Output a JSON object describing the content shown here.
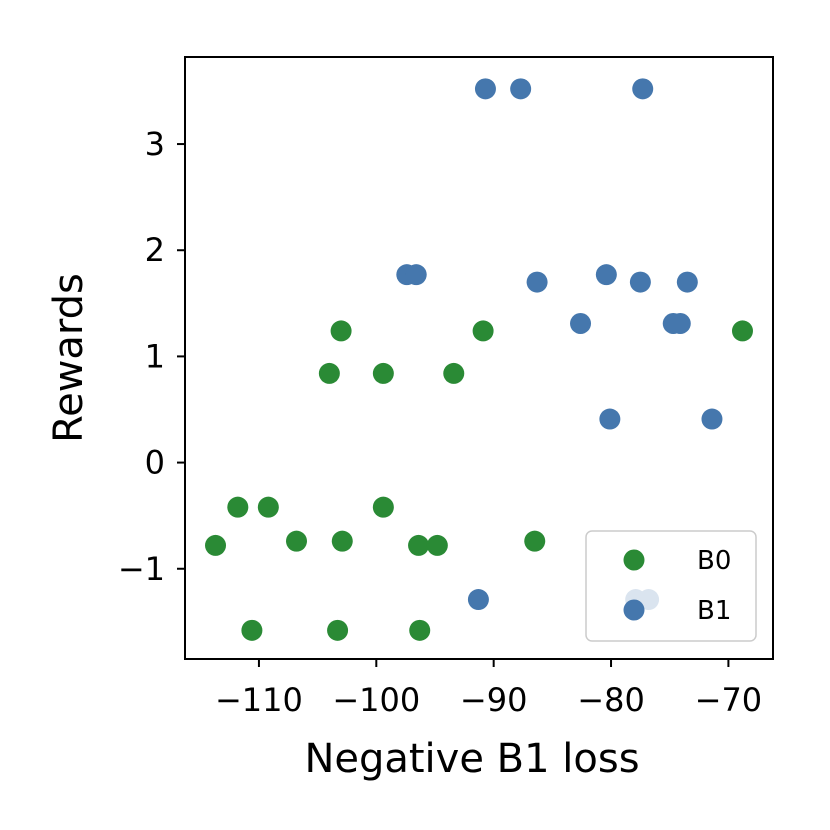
{
  "chart_data": {
    "type": "scatter",
    "title": "",
    "xlabel": "Negative B1 loss",
    "ylabel": "Rewards",
    "xlim": [
      -116.3,
      -66.2
    ],
    "ylim": [
      -1.85,
      3.82
    ],
    "xticks": [
      -110,
      -100,
      -90,
      -80,
      -70
    ],
    "yticks": [
      -1,
      0,
      1,
      2,
      3
    ],
    "xtick_labels": [
      "−110",
      "−100",
      "−90",
      "−80",
      "−70"
    ],
    "ytick_labels": [
      "−1",
      "0",
      "1",
      "2",
      "3"
    ],
    "grid": false,
    "legend_position": "lower-right",
    "series": [
      {
        "name": "B0",
        "color": "#2a8a35",
        "points": [
          [
            -113.7,
            -0.78
          ],
          [
            -111.8,
            -0.42
          ],
          [
            -109.2,
            -0.42
          ],
          [
            -110.6,
            -1.58
          ],
          [
            -106.8,
            -0.74
          ],
          [
            -104.0,
            0.84
          ],
          [
            -103.0,
            1.24
          ],
          [
            -102.9,
            -0.74
          ],
          [
            -103.3,
            -1.58
          ],
          [
            -99.4,
            0.84
          ],
          [
            -99.4,
            -0.42
          ],
          [
            -96.4,
            -0.78
          ],
          [
            -96.3,
            -1.58
          ],
          [
            -94.8,
            -0.78
          ],
          [
            -93.4,
            0.84
          ],
          [
            -90.9,
            1.24
          ],
          [
            -86.5,
            -0.74
          ],
          [
            -68.8,
            1.24
          ]
        ]
      },
      {
        "name": "B1",
        "color": "#4577ad",
        "points": [
          [
            -90.7,
            3.52
          ],
          [
            -87.7,
            3.52
          ],
          [
            -77.3,
            3.52
          ],
          [
            -97.4,
            1.77
          ],
          [
            -96.6,
            1.77
          ],
          [
            -86.3,
            1.7
          ],
          [
            -80.4,
            1.77
          ],
          [
            -77.5,
            1.7
          ],
          [
            -73.5,
            1.7
          ],
          [
            -82.6,
            1.31
          ],
          [
            -74.7,
            1.31
          ],
          [
            -74.1,
            1.31
          ],
          [
            -80.1,
            0.41
          ],
          [
            -71.4,
            0.41
          ],
          [
            -91.3,
            -1.29
          ],
          [
            -77.9,
            -1.29
          ],
          [
            -76.8,
            -1.29
          ]
        ]
      }
    ]
  }
}
